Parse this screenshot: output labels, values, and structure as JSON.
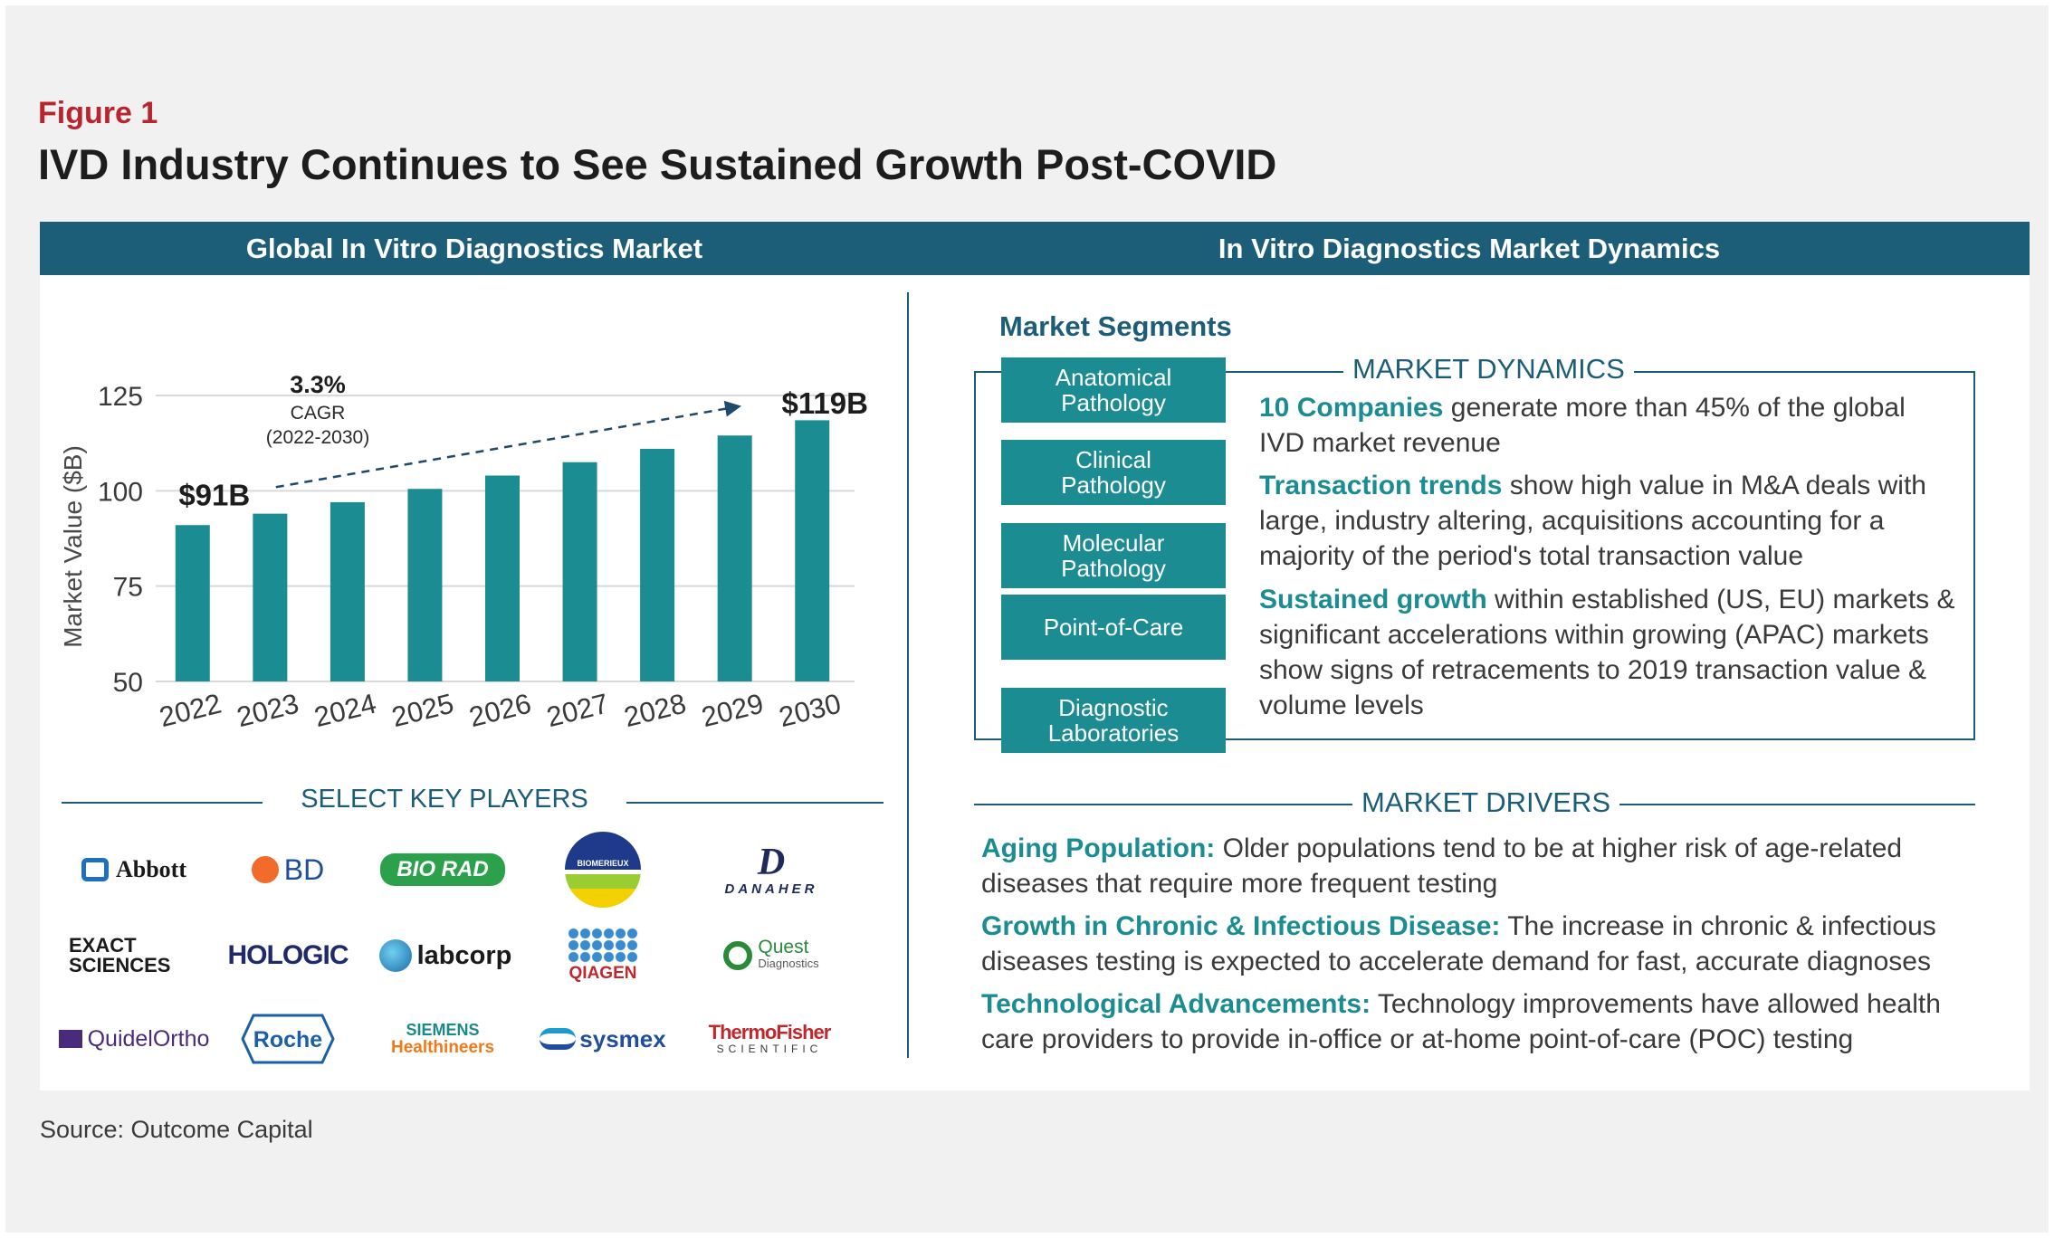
{
  "figure": {
    "label": "Figure 1",
    "title": "IVD Industry Continues to See Sustained Growth Post-COVID",
    "source": "Source: Outcome Capital"
  },
  "left_panel": {
    "header": "Global In Vitro Diagnostics Market",
    "key_players_title": "SELECT KEY PLAYERS",
    "logos": [
      {
        "name": "Abbott",
        "color": "#1f3a8a"
      },
      {
        "name": "BD",
        "color": "#1f4e9c"
      },
      {
        "name": "BIO RAD",
        "color": "#2aa14a"
      },
      {
        "name": "BIOMERIEUX",
        "color": "#1f3a8a"
      },
      {
        "name": "DANAHER",
        "color": "#1f2a5c"
      },
      {
        "name": "EXACT SCIENCES",
        "color": "#1a1a1a"
      },
      {
        "name": "HOLOGIC",
        "color": "#1f2a6c"
      },
      {
        "name": "labcorp",
        "color": "#1a1a1a"
      },
      {
        "name": "QIAGEN",
        "color": "#c0282e"
      },
      {
        "name": "Quest",
        "color": "#2a8a3a"
      },
      {
        "name": "QuidelOrtho",
        "color": "#4a2a7a"
      },
      {
        "name": "Roche",
        "color": "#1a5fa8"
      },
      {
        "name": "SIEMENS",
        "color": "#1a8a8a"
      },
      {
        "name": "sysmex",
        "color": "#1f4e9c"
      },
      {
        "name": "ThermoFisher",
        "color": "#c0282e"
      }
    ],
    "logo_sub": {
      "biomerieux": "BIOMERIEUX",
      "danaher": "DANAHER",
      "quest_sub": "Diagnostics",
      "siemens_sub": "Healthineers",
      "thermo_sub": "SCIENTIFIC",
      "exact_1": "EXACT",
      "exact_2": "SCIENCES"
    }
  },
  "chart_data": {
    "type": "bar",
    "title": "",
    "ylabel": "Market Value ($B)",
    "xlabel": "",
    "categories": [
      "2022",
      "2023",
      "2024",
      "2025",
      "2026",
      "2027",
      "2028",
      "2029",
      "2030"
    ],
    "values": [
      91,
      94,
      97,
      100.5,
      104,
      107.5,
      111,
      114.5,
      118.5
    ],
    "ylim": [
      50,
      125
    ],
    "yticks": [
      50,
      75,
      100,
      125
    ],
    "bar_color": "#1c8c93",
    "grid": true,
    "annotations": {
      "start_label": "$91B",
      "end_label": "$119B",
      "cagr_value": "3.3%",
      "cagr_label": "CAGR",
      "cagr_period": "(2022-2030)"
    }
  },
  "right_panel": {
    "header": "In Vitro Diagnostics Market Dynamics",
    "segments_title": "Market Segments",
    "segments": [
      {
        "line1": "Anatomical",
        "line2": "Pathology"
      },
      {
        "line1": "Clinical",
        "line2": "Pathology"
      },
      {
        "line1": "Molecular",
        "line2": "Pathology"
      },
      {
        "line1": "Point-of-Care",
        "line2": ""
      },
      {
        "line1": "Diagnostic",
        "line2": "Laboratories"
      }
    ],
    "dynamics_title": "MARKET DYNAMICS",
    "dynamics": [
      {
        "highlight": "10 Companies",
        "text": " generate more than 45% of the global IVD market revenue"
      },
      {
        "highlight": "Transaction trends",
        "text": " show high value in M&A deals with large, industry altering, acquisitions accounting for a majority of the period's total transaction value"
      },
      {
        "highlight": "Sustained growth",
        "text": " within established (US, EU) markets & significant accelerations within growing (APAC) markets show signs of retracements to 2019 transaction value & volume levels"
      }
    ],
    "drivers_title": "MARKET DRIVERS",
    "drivers": [
      {
        "highlight": "Aging Population:",
        "text": " Older populations tend to be at higher risk of age-related diseases that require more frequent testing"
      },
      {
        "highlight": "Growth in Chronic & Infectious Disease:",
        "text": " The increase in chronic & infectious diseases testing is expected to accelerate demand for fast, accurate diagnoses"
      },
      {
        "highlight": "Technological Advancements:",
        "text": " Technology improvements have allowed health care providers to provide in-office or at-home point-of-care (POC) testing"
      }
    ]
  }
}
